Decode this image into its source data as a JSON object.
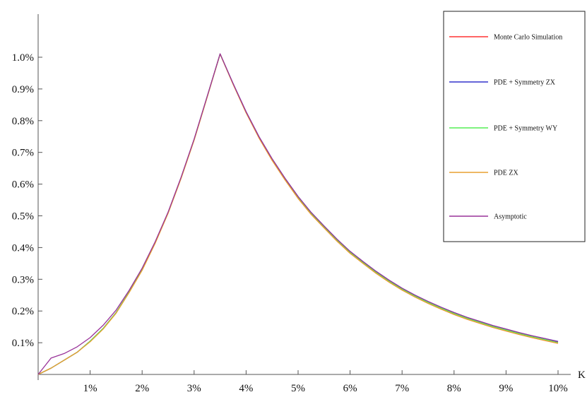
{
  "chart_data": {
    "type": "line",
    "title": "",
    "xlabel": "K",
    "ylabel": "",
    "xlim": [
      0,
      10
    ],
    "ylim": [
      0,
      1.0
    ],
    "x_ticks": [
      {
        "value": 1,
        "label": "1%"
      },
      {
        "value": 2,
        "label": "2%"
      },
      {
        "value": 3,
        "label": "3%"
      },
      {
        "value": 4,
        "label": "4%"
      },
      {
        "value": 5,
        "label": "5%"
      },
      {
        "value": 6,
        "label": "6%"
      },
      {
        "value": 7,
        "label": "7%"
      },
      {
        "value": 8,
        "label": "8%"
      },
      {
        "value": 9,
        "label": "9%"
      },
      {
        "value": 10,
        "label": "10%"
      }
    ],
    "y_ticks": [
      {
        "value": 0.1,
        "label": "0.1%"
      },
      {
        "value": 0.2,
        "label": "0.2%"
      },
      {
        "value": 0.3,
        "label": "0.3%"
      },
      {
        "value": 0.4,
        "label": "0.4%"
      },
      {
        "value": 0.5,
        "label": "0.5%"
      },
      {
        "value": 0.6,
        "label": "0.6%"
      },
      {
        "value": 0.7,
        "label": "0.7%"
      },
      {
        "value": 0.8,
        "label": "0.8%"
      },
      {
        "value": 0.9,
        "label": "0.9%"
      },
      {
        "value": 1.0,
        "label": "1.0%"
      }
    ],
    "grid": false,
    "legend_position": "top-right",
    "series": [
      {
        "name": "Monte Carlo Simulation",
        "color": "#ff3333",
        "x": [
          0,
          0.25,
          0.5,
          0.75,
          1.0,
          1.25,
          1.5,
          1.75,
          2.0,
          2.25,
          2.5,
          2.75,
          3.0,
          3.25,
          3.5,
          3.75,
          4.0,
          4.25,
          4.5,
          4.75,
          5.0,
          5.25,
          5.5,
          5.75,
          6.0,
          6.25,
          6.5,
          6.75,
          7.0,
          7.25,
          7.5,
          7.75,
          8.0,
          8.25,
          8.5,
          8.75,
          9.0,
          9.25,
          9.5,
          9.75,
          10.0
        ],
        "y": [
          0.0,
          0.02,
          0.045,
          0.07,
          0.105,
          0.145,
          0.195,
          0.26,
          0.33,
          0.415,
          0.51,
          0.62,
          0.74,
          0.875,
          1.01,
          0.915,
          0.825,
          0.745,
          0.675,
          0.613,
          0.555,
          0.505,
          0.462,
          0.42,
          0.382,
          0.35,
          0.319,
          0.291,
          0.266,
          0.244,
          0.224,
          0.206,
          0.189,
          0.174,
          0.161,
          0.148,
          0.137,
          0.126,
          0.116,
          0.107,
          0.098
        ]
      },
      {
        "name": "PDE + Symmetry ZX",
        "color": "#3333cc",
        "x": [
          0,
          0.25,
          0.5,
          0.75,
          1.0,
          1.25,
          1.5,
          1.75,
          2.0,
          2.25,
          2.5,
          2.75,
          3.0,
          3.25,
          3.5,
          3.75,
          4.0,
          4.25,
          4.5,
          4.75,
          5.0,
          5.25,
          5.5,
          5.75,
          6.0,
          6.25,
          6.5,
          6.75,
          7.0,
          7.25,
          7.5,
          7.75,
          8.0,
          8.25,
          8.5,
          8.75,
          9.0,
          9.25,
          9.5,
          9.75,
          10.0
        ],
        "y": [
          0.0,
          0.02,
          0.045,
          0.07,
          0.105,
          0.145,
          0.195,
          0.26,
          0.33,
          0.415,
          0.51,
          0.62,
          0.74,
          0.875,
          1.01,
          0.917,
          0.828,
          0.749,
          0.68,
          0.618,
          0.561,
          0.511,
          0.468,
          0.426,
          0.388,
          0.356,
          0.325,
          0.297,
          0.272,
          0.25,
          0.23,
          0.212,
          0.195,
          0.18,
          0.167,
          0.154,
          0.143,
          0.132,
          0.122,
          0.113,
          0.104
        ]
      },
      {
        "name": "PDE + Symmetry WY",
        "color": "#55ee55",
        "x": [
          0,
          0.25,
          0.5,
          0.75,
          1.0,
          1.25,
          1.5,
          1.75,
          2.0,
          2.25,
          2.5,
          2.75,
          3.0,
          3.25,
          3.5,
          3.75,
          4.0,
          4.25,
          4.5,
          4.75,
          5.0,
          5.25,
          5.5,
          5.75,
          6.0,
          6.25,
          6.5,
          6.75,
          7.0,
          7.25,
          7.5,
          7.75,
          8.0,
          8.25,
          8.5,
          8.75,
          9.0,
          9.25,
          9.5,
          9.75,
          10.0
        ],
        "y": [
          0.0,
          0.02,
          0.045,
          0.07,
          0.105,
          0.145,
          0.195,
          0.26,
          0.33,
          0.415,
          0.51,
          0.62,
          0.74,
          0.875,
          1.01,
          0.916,
          0.826,
          0.747,
          0.677,
          0.615,
          0.558,
          0.508,
          0.465,
          0.423,
          0.385,
          0.353,
          0.322,
          0.294,
          0.269,
          0.247,
          0.227,
          0.209,
          0.192,
          0.177,
          0.164,
          0.151,
          0.14,
          0.129,
          0.119,
          0.11,
          0.101
        ]
      },
      {
        "name": "PDE ZX",
        "color": "#e8a030",
        "x": [
          0,
          0.25,
          0.5,
          0.75,
          1.0,
          1.25,
          1.5,
          1.75,
          2.0,
          2.25,
          2.5,
          2.75,
          3.0,
          3.25,
          3.5,
          3.75,
          4.0,
          4.25,
          4.5,
          4.75,
          5.0,
          5.25,
          5.5,
          5.75,
          6.0,
          6.25,
          6.5,
          6.75,
          7.0,
          7.25,
          7.5,
          7.75,
          8.0,
          8.25,
          8.5,
          8.75,
          9.0,
          9.25,
          9.5,
          9.75,
          10.0
        ],
        "y": [
          0.0,
          0.02,
          0.045,
          0.07,
          0.103,
          0.143,
          0.193,
          0.258,
          0.328,
          0.413,
          0.508,
          0.618,
          0.738,
          0.873,
          1.01,
          0.915,
          0.825,
          0.745,
          0.675,
          0.613,
          0.555,
          0.505,
          0.462,
          0.42,
          0.382,
          0.35,
          0.319,
          0.291,
          0.266,
          0.244,
          0.224,
          0.206,
          0.189,
          0.174,
          0.161,
          0.148,
          0.137,
          0.126,
          0.116,
          0.107,
          0.098
        ]
      },
      {
        "name": "Asymptotic",
        "color": "#993399",
        "x": [
          0,
          0.25,
          0.5,
          0.75,
          1.0,
          1.25,
          1.5,
          1.75,
          2.0,
          2.25,
          2.5,
          2.75,
          3.0,
          3.25,
          3.5,
          3.75,
          4.0,
          4.25,
          4.5,
          4.75,
          5.0,
          5.25,
          5.5,
          5.75,
          6.0,
          6.25,
          6.5,
          6.75,
          7.0,
          7.25,
          7.5,
          7.75,
          8.0,
          8.25,
          8.5,
          8.75,
          9.0,
          9.25,
          9.5,
          9.75,
          10.0
        ],
        "y": [
          0.0,
          0.052,
          0.066,
          0.087,
          0.116,
          0.155,
          0.203,
          0.265,
          0.335,
          0.418,
          0.512,
          0.622,
          0.742,
          0.876,
          1.011,
          0.917,
          0.828,
          0.749,
          0.68,
          0.618,
          0.561,
          0.511,
          0.468,
          0.426,
          0.388,
          0.356,
          0.325,
          0.297,
          0.272,
          0.25,
          0.23,
          0.212,
          0.195,
          0.18,
          0.167,
          0.154,
          0.143,
          0.132,
          0.122,
          0.113,
          0.103
        ]
      }
    ]
  }
}
